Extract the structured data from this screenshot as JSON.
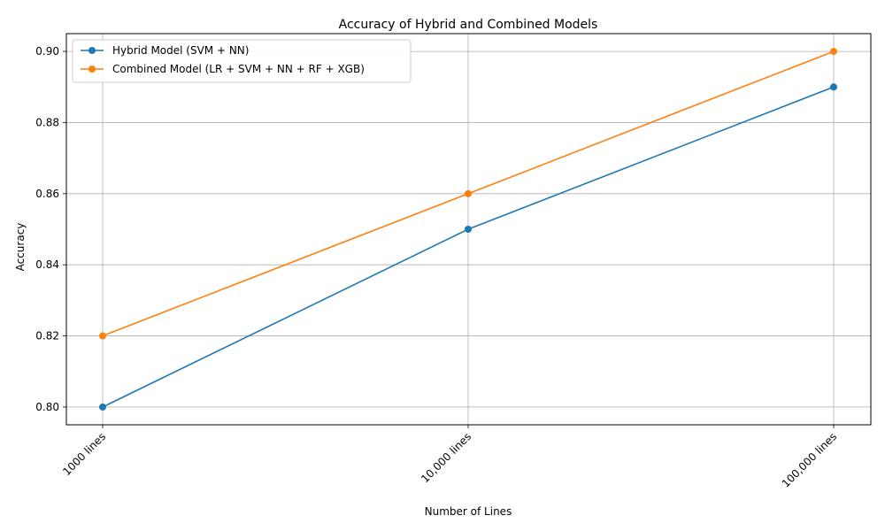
{
  "chart_data": {
    "type": "line",
    "title": "Accuracy of Hybrid and Combined Models",
    "xlabel": "Number of Lines",
    "ylabel": "Accuracy",
    "categories": [
      "1000 lines",
      "10,000 lines",
      "100,000 lines"
    ],
    "yticks": [
      "0.80",
      "0.82",
      "0.84",
      "0.86",
      "0.88",
      "0.90"
    ],
    "ylim": [
      0.795,
      0.905
    ],
    "grid": true,
    "legend_position": "top-left",
    "series": [
      {
        "name": "Hybrid Model (SVM + NN)",
        "values": [
          0.8,
          0.85,
          0.89
        ],
        "color": "#1f77b4",
        "marker": "circle"
      },
      {
        "name": "Combined Model (LR + SVM + NN + RF + XGB)",
        "values": [
          0.82,
          0.86,
          0.9
        ],
        "color": "#ff7f0e",
        "marker": "circle"
      }
    ]
  }
}
